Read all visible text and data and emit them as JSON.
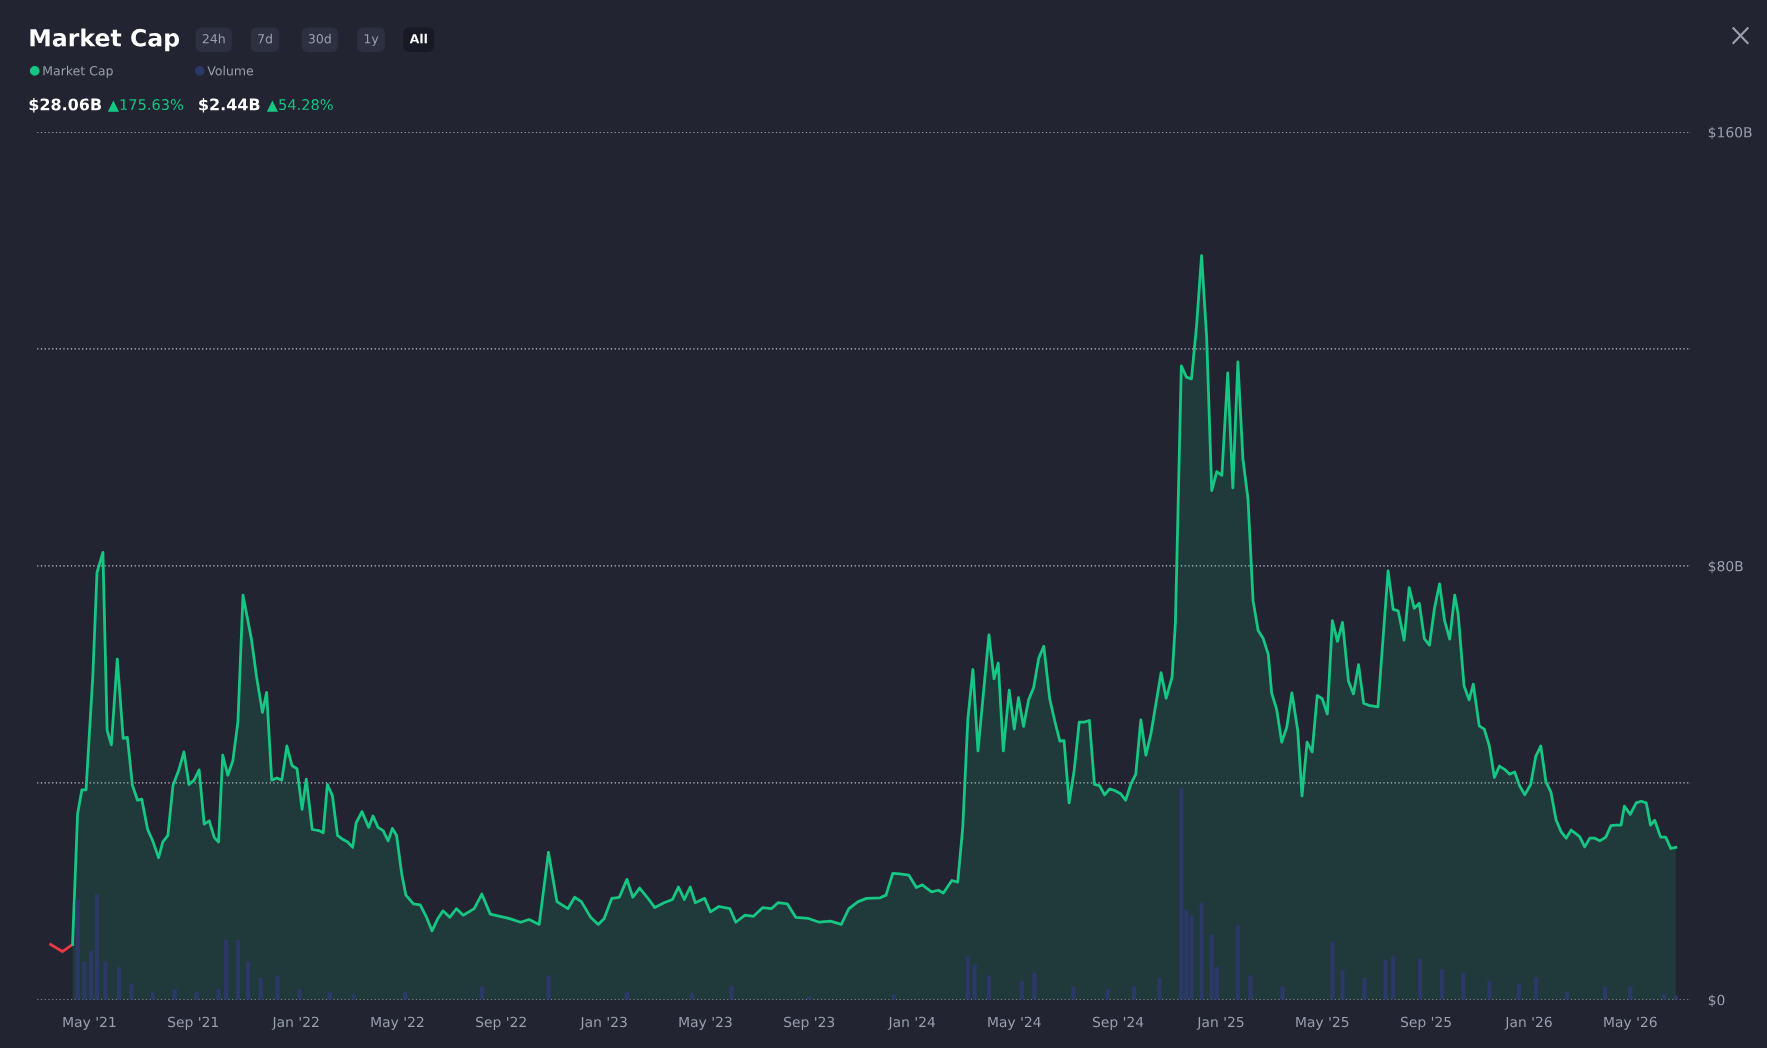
{
  "chart_data": {
    "type": "area",
    "title": "Market Cap",
    "annotations": [
      "24h",
      "7d",
      "30d",
      "1y",
      "All",
      "$28.06B",
      "▲175.63%",
      "$2.44B",
      "▲54.28%"
    ],
    "xlim": [
      "2021-02-28",
      "2026-07-12"
    ],
    "xticks": [
      {
        "value": "2021-05-01",
        "label": "May '21"
      },
      {
        "value": "2021-09-01",
        "label": "Sep '21"
      },
      {
        "value": "2022-01-01",
        "label": "Jan '22"
      },
      {
        "value": "2022-05-01",
        "label": "May '22"
      },
      {
        "value": "2022-09-01",
        "label": "Sep '22"
      },
      {
        "value": "2023-01-01",
        "label": "Jan '23"
      },
      {
        "value": "2023-05-01",
        "label": "May '23"
      },
      {
        "value": "2023-09-01",
        "label": "Sep '23"
      },
      {
        "value": "2024-01-01",
        "label": "Jan '24"
      },
      {
        "value": "2024-05-01",
        "label": "May '24"
      },
      {
        "value": "2024-09-01",
        "label": "Sep '24"
      },
      {
        "value": "2025-01-01",
        "label": "Jan '25"
      },
      {
        "value": "2025-05-01",
        "label": "May '25"
      },
      {
        "value": "2025-09-01",
        "label": "Sep '25"
      },
      {
        "value": "2026-01-01",
        "label": "Jan '26"
      },
      {
        "value": "2026-05-01",
        "label": "May '26"
      }
    ],
    "ylim": [
      0,
      160
    ],
    "yticks": [
      {
        "value": 0,
        "label": "$0"
      },
      {
        "value": 40,
        "label": null
      },
      {
        "value": 80,
        "label": "$80B"
      },
      {
        "value": 120,
        "label": null
      },
      {
        "value": 160,
        "label": "$160B"
      }
    ],
    "grid": "y",
    "legend": "top left",
    "series": [
      {
        "type": "line",
        "color": "#ea3943",
        "x": [
          "2021-03-16",
          "2021-03-30",
          "2021-04-11"
        ],
        "values": [
          10.2,
          8.9,
          10.2
        ]
      },
      {
        "name": "Market Cap",
        "color": "#16c784",
        "x": [
          "2021-04-11",
          "2021-04-17",
          "2021-04-22",
          "2021-04-27",
          "2021-05-05",
          "2021-05-10",
          "2021-05-17",
          "2021-05-22",
          "2021-05-27",
          "2021-06-03",
          "2021-06-10",
          "2021-06-15",
          "2021-06-21",
          "2021-06-27",
          "2021-07-02",
          "2021-07-09",
          "2021-07-15",
          "2021-07-22",
          "2021-07-27",
          "2021-08-02",
          "2021-08-08",
          "2021-08-15",
          "2021-08-21",
          "2021-08-27",
          "2021-09-02",
          "2021-09-08",
          "2021-09-14",
          "2021-09-20",
          "2021-09-26",
          "2021-10-01",
          "2021-10-06",
          "2021-10-12",
          "2021-10-18",
          "2021-10-24",
          "2021-10-30",
          "2021-11-09",
          "2021-11-15",
          "2021-11-22",
          "2021-11-27",
          "2021-12-03",
          "2021-12-09",
          "2021-12-15",
          "2021-12-21",
          "2021-12-27",
          "2022-01-02",
          "2022-01-08",
          "2022-01-13",
          "2022-01-20",
          "2022-01-28",
          "2022-02-02",
          "2022-02-07",
          "2022-02-13",
          "2022-02-19",
          "2022-02-24",
          "2022-03-03",
          "2022-03-09",
          "2022-03-13",
          "2022-03-20",
          "2022-03-28",
          "2022-04-02",
          "2022-04-08",
          "2022-04-14",
          "2022-04-20",
          "2022-04-25",
          "2022-04-30",
          "2022-05-06",
          "2022-05-11",
          "2022-05-20",
          "2022-05-28",
          "2022-06-04",
          "2022-06-11",
          "2022-06-18",
          "2022-06-24",
          "2022-07-02",
          "2022-07-10",
          "2022-07-18",
          "2022-07-31",
          "2022-08-09",
          "2022-08-19",
          "2022-09-10",
          "2022-09-24",
          "2022-10-04",
          "2022-10-16",
          "2022-10-27",
          "2022-11-06",
          "2022-11-19",
          "2022-11-27",
          "2022-12-05",
          "2022-12-16",
          "2022-12-25",
          "2023-01-01",
          "2023-01-10",
          "2023-01-19",
          "2023-01-28",
          "2023-02-04",
          "2023-02-12",
          "2023-02-21",
          "2023-03-02",
          "2023-03-13",
          "2023-03-23",
          "2023-03-30",
          "2023-04-06",
          "2023-04-13",
          "2023-04-19",
          "2023-04-30",
          "2023-05-07",
          "2023-05-17",
          "2023-05-30",
          "2023-06-06",
          "2023-06-17",
          "2023-06-27",
          "2023-07-08",
          "2023-07-18",
          "2023-07-26",
          "2023-08-06",
          "2023-08-16",
          "2023-08-31",
          "2023-09-13",
          "2023-09-26",
          "2023-10-09",
          "2023-10-18",
          "2023-10-29",
          "2023-11-08",
          "2023-11-24",
          "2023-12-01",
          "2023-12-09",
          "2023-12-17",
          "2023-12-28",
          "2024-01-06",
          "2024-01-13",
          "2024-01-24",
          "2024-02-01",
          "2024-02-07",
          "2024-02-17",
          "2024-02-24",
          "2024-03-01",
          "2024-03-07",
          "2024-03-13",
          "2024-03-19",
          "2024-04-01",
          "2024-04-07",
          "2024-04-12",
          "2024-04-18",
          "2024-04-25",
          "2024-05-01",
          "2024-05-06",
          "2024-05-12",
          "2024-05-18",
          "2024-05-24",
          "2024-05-30",
          "2024-06-05",
          "2024-06-12",
          "2024-06-18",
          "2024-06-24",
          "2024-06-29",
          "2024-07-05",
          "2024-07-11",
          "2024-07-17",
          "2024-07-23",
          "2024-07-29",
          "2024-08-04",
          "2024-08-10",
          "2024-08-16",
          "2024-08-22",
          "2024-08-28",
          "2024-09-04",
          "2024-09-10",
          "2024-09-16",
          "2024-09-22",
          "2024-09-28",
          "2024-10-04",
          "2024-10-10",
          "2024-10-22",
          "2024-10-28",
          "2024-11-04",
          "2024-11-08",
          "2024-11-15",
          "2024-11-21",
          "2024-11-27",
          "2024-12-03",
          "2024-12-09",
          "2024-12-15",
          "2024-12-21",
          "2024-12-27",
          "2025-01-02",
          "2025-01-09",
          "2025-01-15",
          "2025-01-21",
          "2025-01-27",
          "2025-02-02",
          "2025-02-08",
          "2025-02-14",
          "2025-02-20",
          "2025-02-26",
          "2025-03-02",
          "2025-03-08",
          "2025-03-14",
          "2025-03-20",
          "2025-03-26",
          "2025-04-02",
          "2025-04-07",
          "2025-04-13",
          "2025-04-19",
          "2025-04-25",
          "2025-05-01",
          "2025-05-07",
          "2025-05-13",
          "2025-05-19",
          "2025-05-25",
          "2025-06-01",
          "2025-06-07",
          "2025-06-13",
          "2025-06-19",
          "2025-06-25",
          "2025-07-06",
          "2025-07-18",
          "2025-07-24",
          "2025-07-30",
          "2025-08-06",
          "2025-08-12",
          "2025-08-18",
          "2025-08-24",
          "2025-08-30",
          "2025-09-05",
          "2025-09-11",
          "2025-09-17",
          "2025-09-23",
          "2025-09-29",
          "2025-10-05",
          "2025-10-09",
          "2025-10-16",
          "2025-10-22",
          "2025-10-27",
          "2025-11-03",
          "2025-11-09",
          "2025-11-15",
          "2025-11-21",
          "2025-11-27",
          "2025-12-03",
          "2025-12-09",
          "2025-12-15",
          "2025-12-21",
          "2025-12-27",
          "2026-01-03",
          "2026-01-09",
          "2026-01-15",
          "2026-01-21",
          "2026-01-27",
          "2026-02-02",
          "2026-02-08",
          "2026-02-14",
          "2026-02-20",
          "2026-03-02",
          "2026-03-08",
          "2026-03-14",
          "2026-03-20",
          "2026-03-26",
          "2026-04-02",
          "2026-04-08",
          "2026-04-14",
          "2026-04-20",
          "2026-04-24",
          "2026-05-01",
          "2026-05-08",
          "2026-05-14",
          "2026-05-20",
          "2026-05-25",
          "2026-05-30",
          "2026-06-06",
          "2026-06-12",
          "2026-06-18",
          "2026-06-24"
        ],
        "values": [
          10.2,
          34.3,
          38.7,
          38.7,
          59.6,
          78.8,
          82.5,
          49.7,
          47.0,
          62.8,
          48.2,
          48.4,
          39.5,
          36.8,
          37.0,
          31.4,
          29.3,
          26.2,
          29.1,
          30.3,
          39.5,
          42.4,
          45.7,
          39.7,
          40.5,
          42.4,
          32.4,
          33.0,
          29.9,
          29.1,
          45.1,
          41.4,
          44.1,
          51.3,
          74.6,
          66.5,
          59.6,
          53.0,
          56.7,
          40.5,
          40.9,
          40.5,
          46.8,
          43.2,
          42.6,
          35.1,
          40.7,
          31.4,
          31.2,
          30.8,
          39.7,
          37.6,
          30.3,
          29.7,
          29.1,
          28.1,
          32.6,
          34.7,
          31.8,
          33.9,
          31.8,
          31.2,
          29.3,
          31.6,
          30.3,
          23.3,
          19.3,
          17.7,
          17.5,
          15.4,
          12.7,
          15.0,
          16.4,
          15.2,
          16.8,
          15.6,
          16.8,
          19.5,
          15.8,
          15.0,
          14.3,
          14.8,
          13.9,
          27.2,
          18.1,
          16.8,
          18.9,
          18.1,
          15.2,
          13.9,
          15.0,
          18.7,
          18.9,
          22.2,
          18.9,
          20.6,
          18.9,
          17.0,
          17.9,
          18.5,
          20.8,
          18.5,
          20.8,
          17.9,
          18.7,
          16.2,
          17.2,
          16.8,
          14.3,
          15.6,
          15.4,
          17.0,
          16.8,
          17.9,
          17.7,
          15.2,
          15.0,
          14.3,
          14.5,
          13.9,
          16.8,
          18.1,
          18.7,
          18.8,
          19.3,
          23.3,
          23.2,
          23.0,
          20.7,
          21.2,
          19.9,
          20.2,
          19.7,
          22.0,
          21.7,
          31.9,
          51.7,
          60.9,
          45.9,
          67.3,
          59.2,
          62.1,
          45.9,
          57.1,
          49.9,
          55.7,
          50.4,
          55.3,
          57.6,
          63.0,
          65.2,
          55.5,
          51.4,
          47.7,
          47.8,
          36.3,
          42.3,
          51.2,
          51.2,
          51.5,
          39.7,
          39.5,
          37.8,
          38.9,
          38.6,
          38.0,
          36.8,
          39.7,
          41.6,
          51.6,
          45.1,
          49.1,
          60.3,
          55.6,
          59.5,
          69.6,
          116.9,
          114.8,
          114.5,
          124.2,
          137.2,
          122.1,
          93.9,
          97.4,
          96.7,
          115.6,
          94.4,
          117.6,
          99.7,
          92.3,
          73.6,
          68.1,
          66.6,
          63.7,
          56.6,
          53.5,
          47.5,
          50.3,
          56.6,
          49.6,
          37.6,
          47.5,
          45.7,
          56.1,
          55.5,
          52.7,
          69.9,
          66.1,
          69.6,
          58.8,
          56.4,
          61.8,
          54.7,
          54.3,
          54.0,
          79.1,
          72.0,
          71.7,
          66.3,
          76.0,
          72.2,
          73.1,
          66.6,
          65.4,
          72.2,
          76.7,
          69.9,
          66.5,
          74.6,
          71.2,
          57.9,
          55.3,
          58.2,
          50.5,
          49.9,
          46.8,
          41.0,
          43.1,
          42.5,
          41.6,
          42.0,
          39.4,
          37.8,
          39.7,
          44.9,
          46.8,
          40.2,
          38.3,
          33.2,
          31.0,
          29.8,
          31.3,
          30.1,
          28.2,
          29.8,
          29.8,
          29.3,
          30.0,
          32.1,
          32.2,
          32.2,
          35.7,
          34.2,
          36.3,
          36.6,
          36.3,
          32.2,
          33.1,
          30.0,
          30.0,
          27.9,
          28.1
        ]
      },
      {
        "name": "Volume",
        "type": "bar",
        "color": "#2c3868",
        "x": [
          "2021-04-17",
          "2021-04-25",
          "2021-05-03",
          "2021-05-10",
          "2021-05-20",
          "2021-06-05",
          "2021-06-20",
          "2021-07-15",
          "2021-08-10",
          "2021-09-05",
          "2021-10-01",
          "2021-10-10",
          "2021-10-24",
          "2021-11-05",
          "2021-11-20",
          "2021-12-10",
          "2022-01-05",
          "2022-02-10",
          "2022-03-10",
          "2022-05-10",
          "2022-08-09",
          "2022-10-27",
          "2023-01-28",
          "2023-04-15",
          "2023-06-01",
          "2023-09-01",
          "2023-12-10",
          "2024-03-07",
          "2024-03-15",
          "2024-04-01",
          "2024-05-10",
          "2024-05-25",
          "2024-07-10",
          "2024-08-20",
          "2024-09-20",
          "2024-10-20",
          "2024-11-15",
          "2024-11-21",
          "2024-11-27",
          "2024-12-09",
          "2024-12-21",
          "2024-12-27",
          "2025-01-21",
          "2025-02-05",
          "2025-03-15",
          "2025-05-13",
          "2025-05-25",
          "2025-06-20",
          "2025-07-15",
          "2025-07-24",
          "2025-08-25",
          "2025-09-20",
          "2025-10-15",
          "2025-11-15",
          "2025-12-20",
          "2026-01-09",
          "2026-02-15",
          "2026-04-01",
          "2026-05-01",
          "2026-06-10",
          "2026-06-24"
        ],
        "values": [
          18.5,
          7,
          9,
          19.5,
          7,
          6,
          3,
          1.5,
          2,
          1.5,
          2,
          11,
          11,
          7,
          4,
          4.5,
          2,
          1.5,
          1,
          1.5,
          2.5,
          4.5,
          1.5,
          1.2,
          2.5,
          0.6,
          1,
          8,
          6.5,
          4.5,
          3.5,
          5,
          2.5,
          2,
          2.5,
          4,
          39,
          16.6,
          15.5,
          17.8,
          12,
          6,
          13.8,
          4.5,
          2.5,
          10.7,
          5.5,
          4,
          7.4,
          8,
          7.5,
          5.6,
          5,
          3.5,
          3,
          4.2,
          1.5,
          2.3,
          2.5,
          1,
          0.8
        ]
      }
    ]
  }
}
